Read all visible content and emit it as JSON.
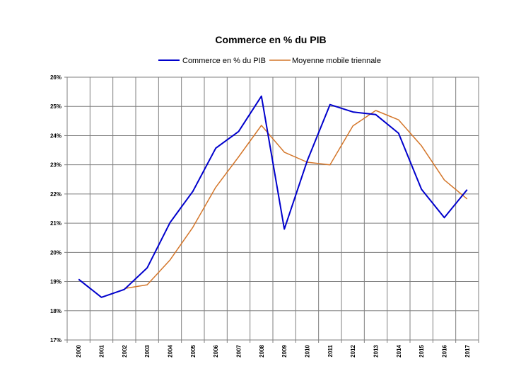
{
  "chart_data": {
    "type": "line",
    "title": "Commerce en % du PIB",
    "xlabel": "",
    "ylabel": "",
    "categories": [
      "2000",
      "2001",
      "2002",
      "2003",
      "2004",
      "2005",
      "2006",
      "2007",
      "2008",
      "2009",
      "2010",
      "2011",
      "2012",
      "2013",
      "2014",
      "2015",
      "2016",
      "2017"
    ],
    "ylim": [
      17,
      26
    ],
    "yticks": [
      "17%",
      "18%",
      "19%",
      "20%",
      "21%",
      "22%",
      "23%",
      "24%",
      "25%",
      "26%"
    ],
    "grid": true,
    "legend_position": "top",
    "series": [
      {
        "name": "Commerce en % du PIB",
        "color": "#0000cc",
        "values": [
          19.08,
          18.46,
          18.73,
          19.47,
          21.02,
          22.09,
          23.57,
          24.14,
          25.35,
          20.8,
          23.13,
          25.06,
          24.81,
          24.72,
          24.08,
          22.16,
          21.19,
          22.15
        ]
      },
      {
        "name": "Moyenne mobile triennale",
        "color": "#d4762a",
        "values": [
          null,
          null,
          18.76,
          18.89,
          19.74,
          20.86,
          22.23,
          23.27,
          24.35,
          23.43,
          23.09,
          23.0,
          24.33,
          24.86,
          24.54,
          23.65,
          22.48,
          21.83
        ]
      }
    ]
  }
}
